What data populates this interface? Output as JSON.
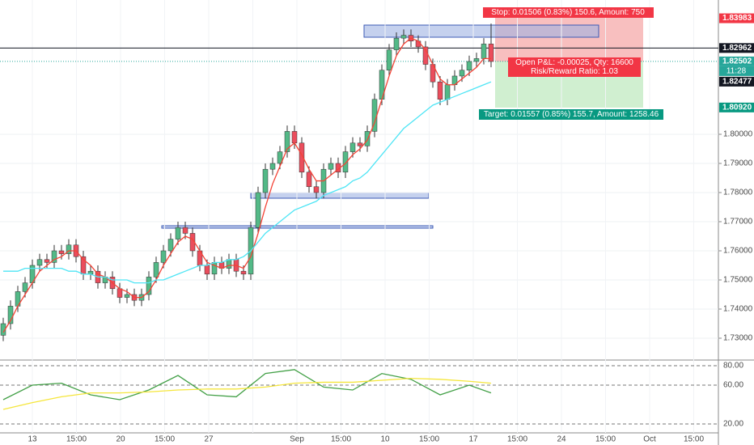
{
  "chart_data": {
    "type": "candlestick",
    "x_labels": [
      "13",
      "15:00",
      "20",
      "15:00",
      "27",
      null,
      "Sep",
      "15:00",
      "10",
      "15:00",
      "17",
      "15:00",
      "24",
      "15:00",
      "Oct",
      "15:00"
    ],
    "open": [
      1.731,
      1.735,
      1.741,
      1.746,
      1.749,
      1.755,
      1.757,
      1.756,
      1.76,
      1.759,
      1.762,
      1.758,
      1.752,
      1.753,
      1.749,
      1.751,
      1.747,
      1.744,
      1.745,
      1.743,
      1.745,
      1.751,
      1.756,
      1.76,
      1.764,
      1.768,
      1.766,
      1.76,
      1.755,
      1.752,
      1.756,
      1.754,
      1.757,
      1.753,
      1.752,
      1.768,
      1.78,
      1.788,
      1.79,
      1.794,
      1.801,
      1.797,
      1.787,
      1.782,
      1.78,
      1.788,
      1.79,
      1.787,
      1.794,
      1.797,
      1.796,
      1.801,
      1.812,
      1.822,
      1.829,
      1.833,
      1.834,
      1.832,
      1.83,
      1.824,
      1.818,
      1.812,
      1.817,
      1.82,
      1.822,
      1.825,
      1.826,
      1.831
    ],
    "high": [
      1.737,
      1.743,
      1.748,
      1.751,
      1.757,
      1.759,
      1.759,
      1.762,
      1.762,
      1.764,
      1.764,
      1.76,
      1.755,
      1.755,
      1.753,
      1.753,
      1.749,
      1.747,
      1.747,
      1.747,
      1.753,
      1.758,
      1.762,
      1.766,
      1.77,
      1.77,
      1.768,
      1.762,
      1.757,
      1.758,
      1.758,
      1.759,
      1.759,
      1.755,
      1.77,
      1.782,
      1.79,
      1.792,
      1.796,
      1.803,
      1.803,
      1.799,
      1.789,
      1.784,
      1.79,
      1.792,
      1.792,
      1.796,
      1.799,
      1.799,
      1.803,
      1.814,
      1.824,
      1.831,
      1.835,
      1.836,
      1.836,
      1.834,
      1.832,
      1.826,
      1.82,
      1.819,
      1.822,
      1.824,
      1.827,
      1.828,
      1.833,
      1.838
    ],
    "low": [
      1.729,
      1.733,
      1.739,
      1.744,
      1.747,
      1.753,
      1.754,
      1.754,
      1.757,
      1.757,
      1.756,
      1.75,
      1.75,
      1.747,
      1.747,
      1.745,
      1.742,
      1.742,
      1.741,
      1.741,
      1.743,
      1.749,
      1.754,
      1.758,
      1.762,
      1.764,
      1.758,
      1.753,
      1.75,
      1.75,
      1.752,
      1.752,
      1.751,
      1.75,
      1.75,
      1.766,
      1.778,
      1.786,
      1.788,
      1.792,
      1.795,
      1.785,
      1.78,
      1.778,
      1.778,
      1.786,
      1.785,
      1.785,
      1.792,
      1.794,
      1.794,
      1.799,
      1.81,
      1.82,
      1.827,
      1.831,
      1.83,
      1.828,
      1.822,
      1.816,
      1.81,
      1.81,
      1.815,
      1.818,
      1.82,
      1.823,
      1.824,
      1.823
    ],
    "close": [
      1.735,
      1.741,
      1.746,
      1.749,
      1.755,
      1.757,
      1.756,
      1.76,
      1.759,
      1.762,
      1.758,
      1.752,
      1.753,
      1.749,
      1.751,
      1.747,
      1.744,
      1.745,
      1.743,
      1.745,
      1.751,
      1.756,
      1.76,
      1.764,
      1.768,
      1.766,
      1.76,
      1.755,
      1.752,
      1.756,
      1.754,
      1.757,
      1.753,
      1.752,
      1.768,
      1.78,
      1.788,
      1.79,
      1.794,
      1.801,
      1.797,
      1.787,
      1.782,
      1.78,
      1.788,
      1.79,
      1.787,
      1.794,
      1.797,
      1.796,
      1.801,
      1.812,
      1.822,
      1.829,
      1.833,
      1.834,
      1.832,
      1.83,
      1.824,
      1.818,
      1.812,
      1.817,
      1.82,
      1.822,
      1.825,
      1.826,
      1.831,
      1.825
    ],
    "up_color": "#53b987",
    "down_color": "#eb4d5c",
    "overlays": [
      {
        "color": "#f44336",
        "values": [
          1.732,
          1.736,
          1.741,
          1.745,
          1.749,
          1.753,
          1.755,
          1.757,
          1.758,
          1.76,
          1.76,
          1.757,
          1.755,
          1.752,
          1.751,
          1.749,
          1.747,
          1.746,
          1.744,
          1.744,
          1.746,
          1.75,
          1.755,
          1.759,
          1.763,
          1.765,
          1.764,
          1.76,
          1.756,
          1.755,
          1.754,
          1.755,
          1.755,
          1.754,
          1.758,
          1.766,
          1.775,
          1.783,
          1.789,
          1.795,
          1.797,
          1.793,
          1.788,
          1.784,
          1.784,
          1.786,
          1.788,
          1.79,
          1.793,
          1.795,
          1.798,
          1.804,
          1.812,
          1.82,
          1.827,
          1.831,
          1.833,
          1.832,
          1.829,
          1.824,
          1.819,
          1.817,
          1.817,
          1.819,
          1.821,
          1.823,
          1.826,
          1.826
        ]
      },
      {
        "color": "#4ee5f5",
        "values": [
          1.753,
          1.753,
          1.753,
          1.754,
          1.754,
          1.754,
          1.754,
          1.754,
          1.754,
          1.753,
          1.753,
          1.752,
          1.752,
          1.751,
          1.751,
          1.75,
          1.75,
          1.75,
          1.749,
          1.749,
          1.749,
          1.75,
          1.75,
          1.751,
          1.752,
          1.753,
          1.754,
          1.755,
          1.755,
          1.756,
          1.756,
          1.757,
          1.757,
          1.758,
          1.76,
          1.763,
          1.766,
          1.768,
          1.77,
          1.772,
          1.774,
          1.775,
          1.776,
          1.777,
          1.779,
          1.78,
          1.781,
          1.782,
          1.784,
          1.785,
          1.787,
          1.79,
          1.793,
          1.796,
          1.799,
          1.802,
          1.804,
          1.806,
          1.808,
          1.81,
          1.811,
          1.812,
          1.813,
          1.814,
          1.815,
          1.816,
          1.817,
          1.818
        ]
      }
    ],
    "ylim": [
      1.7225,
      1.8461
    ],
    "yticks": [
      {
        "value": 1.73,
        "label": "1.73000"
      },
      {
        "value": 1.74,
        "label": "1.74000"
      },
      {
        "value": 1.75,
        "label": "1.75000"
      },
      {
        "value": 1.76,
        "label": "1.76000"
      },
      {
        "value": 1.77,
        "label": "1.77000"
      },
      {
        "value": 1.78,
        "label": "1.78000"
      },
      {
        "value": 1.79,
        "label": "1.79000"
      },
      {
        "value": 1.8,
        "label": "1.80000"
      }
    ],
    "price_labels": [
      {
        "value": 1.83983,
        "label": "1.83983",
        "color": "#f23645"
      },
      {
        "value": 1.82962,
        "label": "1.82962",
        "color": "#131722"
      },
      {
        "value": 1.82502,
        "label": "1.82502",
        "color": "#26a69a"
      },
      {
        "value": 1.82477,
        "label": "1.82477",
        "color": "#131722"
      },
      {
        "value": 1.8092,
        "label": "1.80920",
        "color": "#089981"
      }
    ],
    "countdown": "11:28",
    "position": {
      "stop": "Stop: 0.01506 (0.83%) 150.6, Amount: 750",
      "pnl": "Open P&L: -0.00025, Qty: 16600",
      "ratio": "Risk/Reward Ratio: 1.03",
      "target": "Target: 0.01557 (0.85%) 155.7, Amount: 1258.46"
    },
    "oscillator": {
      "ylim": [
        10.8,
        84.2
      ],
      "yticks": [
        {
          "value": 80,
          "label": "80.00"
        },
        {
          "value": 60,
          "label": "60.00"
        },
        {
          "value": 20,
          "label": "20.00"
        }
      ],
      "x": [
        0,
        4,
        8,
        12,
        16,
        20,
        24,
        28,
        32,
        36,
        40,
        44,
        48,
        52,
        56,
        60,
        64,
        67
      ],
      "series": [
        {
          "color": "#43a047",
          "values": [
            45,
            60,
            62,
            50,
            45,
            55,
            70,
            50,
            48,
            72,
            76,
            58,
            55,
            72,
            66,
            50,
            60,
            52
          ]
        },
        {
          "color": "#f5e63c",
          "values": [
            35,
            42,
            48,
            52,
            52,
            53,
            55,
            56,
            56,
            58,
            62,
            63,
            63,
            65,
            67,
            66,
            64,
            62
          ]
        }
      ]
    }
  }
}
